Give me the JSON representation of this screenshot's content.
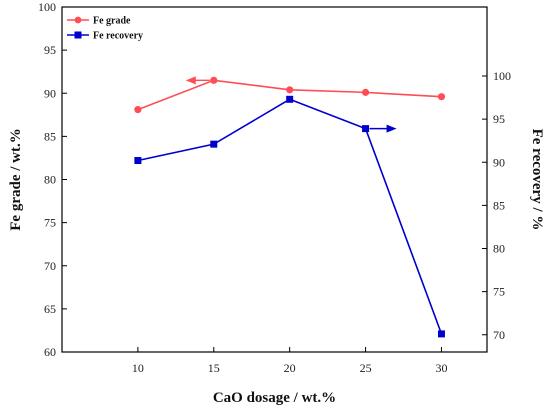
{
  "chart_data": {
    "type": "line",
    "x": [
      10,
      15,
      20,
      25,
      30
    ],
    "xlabel": "CaO dosage / wt.%",
    "ylabel_left": "Fe grade / wt.%",
    "ylabel_right": "Fe recovery / %",
    "xlim": [
      5,
      33
    ],
    "ylim_left": [
      60,
      100
    ],
    "ylim_right": [
      68,
      108
    ],
    "x_ticks": [
      10,
      15,
      20,
      25,
      30
    ],
    "y_ticks_left": [
      60,
      65,
      70,
      75,
      80,
      85,
      90,
      95,
      100
    ],
    "y_ticks_right": [
      70,
      75,
      80,
      85,
      90,
      95,
      100
    ],
    "grid": false,
    "legend_position": "top-left",
    "series": [
      {
        "name": "Fe grade",
        "axis": "left",
        "color": "#ff4d55",
        "marker": "circle",
        "values": [
          88.1,
          91.5,
          90.4,
          90.1,
          89.6
        ]
      },
      {
        "name": "Fe recovery",
        "axis": "right",
        "color": "#0000cc",
        "marker": "square",
        "values": [
          90.2,
          92.1,
          97.3,
          93.9,
          70.1
        ]
      }
    ]
  }
}
